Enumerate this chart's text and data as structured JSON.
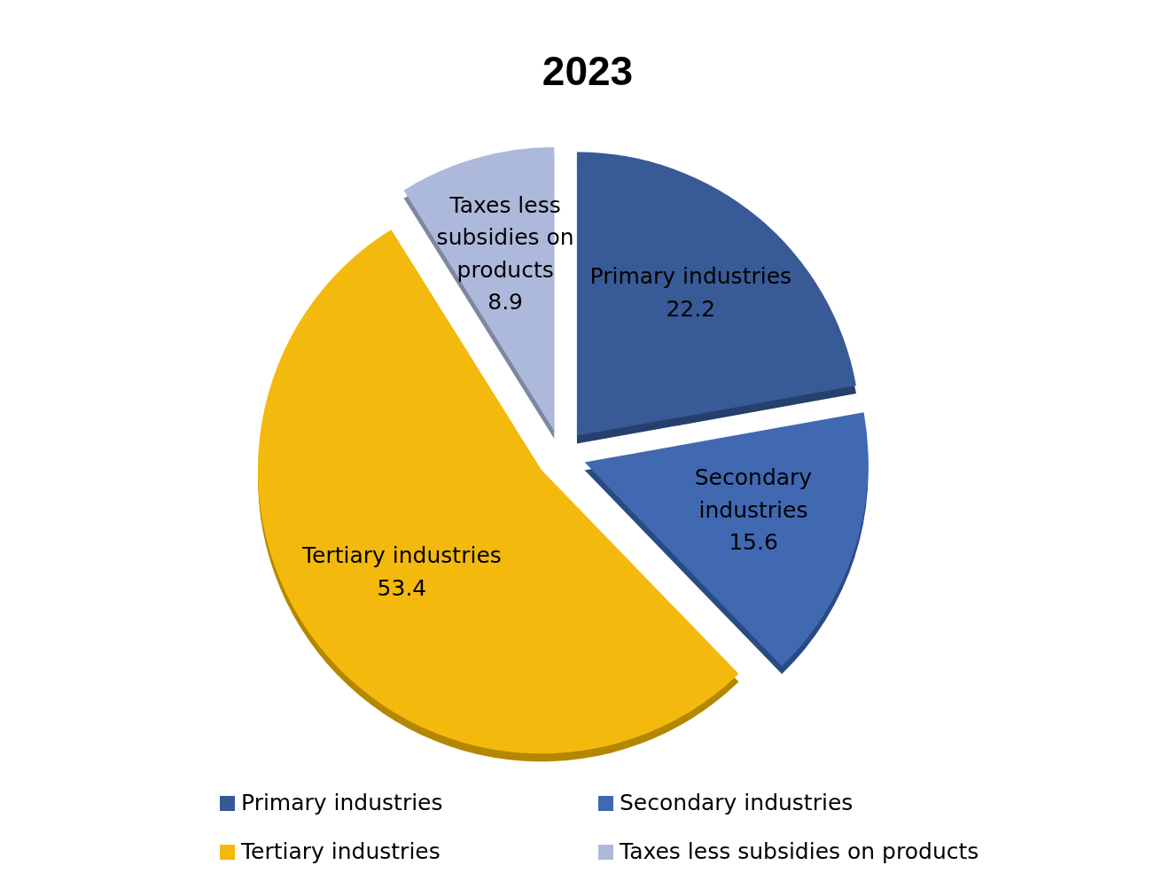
{
  "chart_data": {
    "type": "pie",
    "title": "2023",
    "categories": [
      "Primary industries",
      "Secondary industries",
      "Tertiary industries",
      "Taxes less subsidies on products"
    ],
    "values": [
      22.2,
      15.6,
      53.4,
      8.9
    ],
    "colors": [
      "#375a96",
      "#4169b2",
      "#f4b908",
      "#adb9db"
    ],
    "data_labels": true,
    "legend": "bottom"
  }
}
